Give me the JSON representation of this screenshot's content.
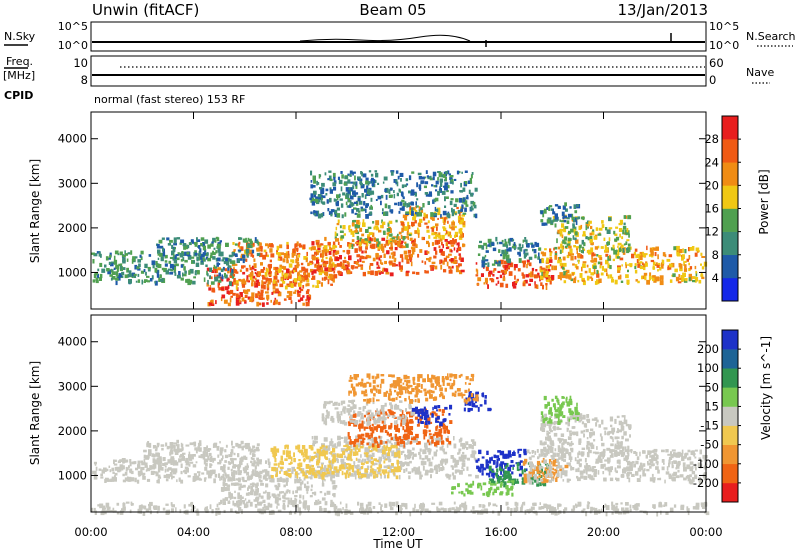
{
  "header": {
    "station": "Unwin (fitACF)",
    "beam": "Beam 05",
    "date": "13/Jan/2013"
  },
  "noise_panel": {
    "left_label": "N.Sky",
    "left_ticks": [
      "10^5",
      "10^0"
    ],
    "right_label": "N.Search",
    "right_ticks": [
      "10^5",
      "10^0"
    ]
  },
  "freq_panel": {
    "left_label_line1": "Freq.",
    "left_label_line2": "[MHz]",
    "left_ticks": [
      "10",
      "8"
    ],
    "right_label": "Nave",
    "right_ticks": [
      "60",
      "0"
    ],
    "cpid_label": "CPID",
    "mode_text": "normal (fast stereo) 153 RF"
  },
  "chart_data": [
    {
      "type": "heatmap",
      "name": "power",
      "ylabel": "Slant Range [km]",
      "ylim": [
        180,
        4600
      ],
      "yticks": [
        "1000",
        "2000",
        "3000",
        "4000"
      ],
      "ytick_values": [
        1000,
        2000,
        3000,
        4000
      ],
      "xlim": [
        0,
        24
      ],
      "colorbar_label": "Power [dB]",
      "colorbar_ticks": [
        "4",
        "8",
        "12",
        "16",
        "20",
        "24",
        "28"
      ],
      "colorbar_range": [
        0,
        32
      ],
      "colors": [
        "#1428e8",
        "#1e5aa8",
        "#3c8c78",
        "#50a050",
        "#f0c814",
        "#f08c14",
        "#f05a14",
        "#e81e1e"
      ],
      "echo_regions": [
        {
          "t0": 4.5,
          "t1": 8.5,
          "r0": 300,
          "r1": 1200,
          "v": 26
        },
        {
          "t0": 5.5,
          "t1": 9.5,
          "r0": 700,
          "r1": 1700,
          "v": 22
        },
        {
          "t0": 8.5,
          "t1": 14.5,
          "r0": 1000,
          "r1": 1800,
          "v": 25
        },
        {
          "t0": 9.5,
          "t1": 12.5,
          "r0": 1600,
          "r1": 2200,
          "v": 18
        },
        {
          "t0": 12.0,
          "t1": 14.5,
          "r0": 1800,
          "r1": 2500,
          "v": 21
        },
        {
          "t0": 8.5,
          "t1": 15.0,
          "r0": 2300,
          "r1": 3300,
          "v": 9
        },
        {
          "t0": 0.0,
          "t1": 5.5,
          "r0": 800,
          "r1": 1500,
          "v": 11
        },
        {
          "t0": 2.5,
          "t1": 6.5,
          "r0": 1300,
          "r1": 1800,
          "v": 10
        },
        {
          "t0": 15.0,
          "t1": 18.0,
          "r0": 700,
          "r1": 1300,
          "v": 27
        },
        {
          "t0": 15.0,
          "t1": 17.5,
          "r0": 1200,
          "r1": 1800,
          "v": 10
        },
        {
          "t0": 17.5,
          "t1": 24.0,
          "r0": 800,
          "r1": 1600,
          "v": 20
        },
        {
          "t0": 18.0,
          "t1": 21.0,
          "r0": 1500,
          "r1": 2300,
          "v": 16
        },
        {
          "t0": 17.5,
          "t1": 19.0,
          "r0": 2100,
          "r1": 2600,
          "v": 9
        }
      ]
    },
    {
      "type": "heatmap",
      "name": "velocity",
      "ylabel": "Slant Range [km]",
      "ylim": [
        180,
        4600
      ],
      "yticks": [
        "1000",
        "2000",
        "3000",
        "4000"
      ],
      "ytick_values": [
        1000,
        2000,
        3000,
        4000
      ],
      "xlim": [
        0,
        24
      ],
      "xlabel": "Time UT",
      "xticks": [
        "00:00",
        "04:00",
        "08:00",
        "12:00",
        "16:00",
        "20:00",
        "00:00"
      ],
      "xtick_values": [
        0,
        4,
        8,
        12,
        16,
        20,
        24
      ],
      "colorbar_label": "Velocity [m s^-1]",
      "colorbar_ticks": [
        "200",
        "100",
        "50",
        "15",
        "-15",
        "-50",
        "-100",
        "-200"
      ],
      "colors": [
        "#1e32c8",
        "#1e6496",
        "#329650",
        "#78c850",
        "#c8c8c0",
        "#f0c850",
        "#f09632",
        "#f06414",
        "#e81e1e"
      ],
      "echo_regions": [
        {
          "t0": 0.0,
          "t1": 24.0,
          "r0": 180,
          "r1": 420,
          "v": "#c8c8c0"
        },
        {
          "t0": 0.0,
          "t1": 7.0,
          "r0": 900,
          "r1": 1400,
          "v": "#c8c8c0"
        },
        {
          "t0": 2.0,
          "t1": 6.5,
          "r0": 1300,
          "r1": 1800,
          "v": "#c8c8c0"
        },
        {
          "t0": 5.0,
          "t1": 9.5,
          "r0": 400,
          "r1": 1200,
          "v": "#c8c8c0"
        },
        {
          "t0": 8.5,
          "t1": 15.0,
          "r0": 1000,
          "r1": 1900,
          "v": "#c8c8c0"
        },
        {
          "t0": 7.0,
          "t1": 12.0,
          "r0": 1000,
          "r1": 1700,
          "v": "#f0c850"
        },
        {
          "t0": 10.0,
          "t1": 14.0,
          "r0": 1700,
          "r1": 2500,
          "v": "#f06414"
        },
        {
          "t0": 9.0,
          "t1": 12.5,
          "r0": 2200,
          "r1": 2700,
          "v": "#c8c8c0"
        },
        {
          "t0": 12.5,
          "t1": 14.0,
          "r0": 2200,
          "r1": 2600,
          "v": "#1e32c8"
        },
        {
          "t0": 14.5,
          "t1": 15.5,
          "r0": 2500,
          "r1": 2900,
          "v": "#1e32c8"
        },
        {
          "t0": 15.0,
          "t1": 17.0,
          "r0": 1000,
          "r1": 1600,
          "v": "#1e32c8"
        },
        {
          "t0": 15.5,
          "t1": 17.8,
          "r0": 800,
          "r1": 1300,
          "v": "#329650"
        },
        {
          "t0": 16.8,
          "t1": 18.5,
          "r0": 900,
          "r1": 1400,
          "v": "#f09632"
        },
        {
          "t0": 14.0,
          "t1": 16.5,
          "r0": 600,
          "r1": 900,
          "v": "#78c850"
        },
        {
          "t0": 17.0,
          "t1": 24.0,
          "r0": 900,
          "r1": 1600,
          "v": "#c8c8c0"
        },
        {
          "t0": 17.5,
          "t1": 21.0,
          "r0": 1500,
          "r1": 2400,
          "v": "#c8c8c0"
        },
        {
          "t0": 17.5,
          "t1": 19.0,
          "r0": 2200,
          "r1": 2800,
          "v": "#78c850"
        },
        {
          "t0": 10.0,
          "t1": 15.0,
          "r0": 2700,
          "r1": 3300,
          "v": "#f09632"
        }
      ]
    }
  ]
}
